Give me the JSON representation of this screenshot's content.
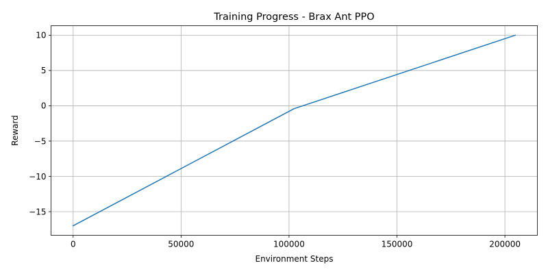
{
  "chart_data": {
    "type": "line",
    "title": "Training Progress - Brax Ant PPO",
    "xlabel": "Environment Steps",
    "ylabel": "Reward",
    "xlim": [
      -10240,
      215040
    ],
    "ylim": [
      -18.35,
      11.35
    ],
    "xticks": [
      0,
      50000,
      100000,
      150000,
      200000
    ],
    "xtick_labels": [
      "0",
      "50000",
      "100000",
      "150000",
      "200000"
    ],
    "yticks": [
      -15,
      -10,
      -5,
      0,
      5,
      10
    ],
    "ytick_labels": [
      "−15",
      "−10",
      "−5",
      "0",
      "5",
      "10"
    ],
    "grid": true,
    "series": [
      {
        "color": "#1f77b4",
        "x": [
          0,
          102400,
          204800
        ],
        "y": [
          -17.0,
          -0.4,
          10.0
        ]
      }
    ]
  }
}
